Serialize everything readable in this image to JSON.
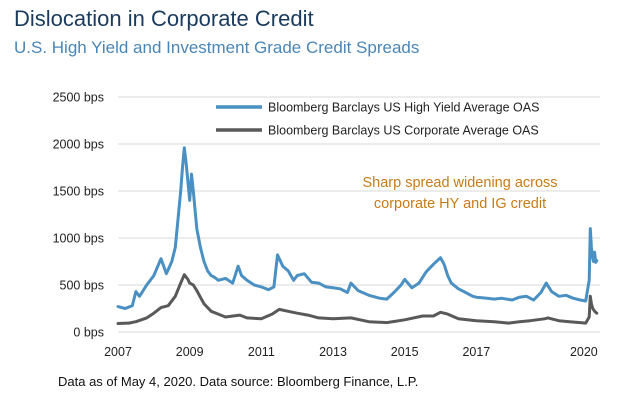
{
  "header": {
    "title": "Dislocation in Corporate Credit",
    "subtitle": "U.S. High Yield and Investment Grade Credit Spreads"
  },
  "footnote": "Data as of May 4, 2020. Data source: Bloomberg Finance, L.P.",
  "colors": {
    "high_yield": "#4a90c2",
    "corporate": "#595959",
    "annotation": "#c77b16",
    "grid": "#d9d9d9"
  },
  "chart_data": {
    "type": "line",
    "title": "Dislocation in Corporate Credit",
    "subtitle": "U.S. High Yield and Investment Grade Credit Spreads",
    "xlabel": "",
    "ylabel": "",
    "xlim": [
      2007.0,
      2020.45
    ],
    "ylim": [
      0,
      2500
    ],
    "y_ticks": [
      0,
      500,
      1000,
      1500,
      2000,
      2500
    ],
    "y_tick_labels": [
      "0 bps",
      "500 bps",
      "1000 bps",
      "1500 bps",
      "2000 bps",
      "2500 bps"
    ],
    "x_ticks": [
      2007,
      2009,
      2011,
      2013,
      2015,
      2017,
      2020
    ],
    "x_tick_labels": [
      "2007",
      "2009",
      "2011",
      "2013",
      "2015",
      "2017",
      "2020"
    ],
    "grid": "horizontal",
    "legend_position": "top-right",
    "annotation": [
      "Sharp spread widening across",
      "corporate HY and IG credit"
    ],
    "series": [
      {
        "name": "Bloomberg Barclays US High Yield Average OAS",
        "x": [
          2007.0,
          2007.2,
          2007.4,
          2007.5,
          2007.6,
          2007.8,
          2008.0,
          2008.2,
          2008.35,
          2008.5,
          2008.6,
          2008.7,
          2008.75,
          2008.8,
          2008.85,
          2008.9,
          2008.95,
          2009.0,
          2009.05,
          2009.1,
          2009.2,
          2009.3,
          2009.4,
          2009.5,
          2009.6,
          2009.7,
          2009.8,
          2010.0,
          2010.2,
          2010.35,
          2010.45,
          2010.6,
          2010.8,
          2011.0,
          2011.2,
          2011.35,
          2011.45,
          2011.6,
          2011.75,
          2011.9,
          2012.0,
          2012.2,
          2012.4,
          2012.6,
          2012.8,
          2013.0,
          2013.2,
          2013.4,
          2013.5,
          2013.7,
          2014.0,
          2014.3,
          2014.5,
          2014.7,
          2014.9,
          2015.0,
          2015.2,
          2015.4,
          2015.6,
          2015.8,
          2016.0,
          2016.1,
          2016.2,
          2016.3,
          2016.5,
          2016.7,
          2016.9,
          2017.0,
          2017.3,
          2017.5,
          2017.7,
          2018.0,
          2018.2,
          2018.4,
          2018.6,
          2018.8,
          2018.95,
          2019.1,
          2019.3,
          2019.5,
          2019.7,
          2019.9,
          2020.05,
          2020.15,
          2020.18,
          2020.21,
          2020.24,
          2020.27,
          2020.3,
          2020.33,
          2020.36
        ],
        "values": [
          270,
          250,
          280,
          430,
          380,
          500,
          600,
          780,
          620,
          750,
          900,
          1300,
          1500,
          1750,
          1960,
          1800,
          1600,
          1400,
          1680,
          1500,
          1100,
          900,
          750,
          650,
          600,
          580,
          550,
          570,
          520,
          700,
          600,
          550,
          500,
          480,
          450,
          480,
          820,
          700,
          650,
          550,
          600,
          620,
          530,
          520,
          480,
          470,
          460,
          420,
          520,
          440,
          390,
          360,
          350,
          420,
          500,
          560,
          470,
          520,
          640,
          720,
          790,
          720,
          600,
          520,
          460,
          420,
          380,
          370,
          360,
          350,
          360,
          340,
          370,
          380,
          340,
          420,
          520,
          430,
          380,
          390,
          360,
          340,
          330,
          550,
          1100,
          900,
          800,
          750,
          850,
          740,
          760
        ]
      },
      {
        "name": "Bloomberg Barclays US Corporate Average OAS",
        "x": [
          2007.0,
          2007.3,
          2007.5,
          2007.8,
          2008.0,
          2008.2,
          2008.4,
          2008.6,
          2008.75,
          2008.85,
          2008.95,
          2009.0,
          2009.1,
          2009.2,
          2009.4,
          2009.6,
          2009.8,
          2010.0,
          2010.4,
          2010.6,
          2011.0,
          2011.3,
          2011.5,
          2011.75,
          2012.0,
          2012.3,
          2012.6,
          2013.0,
          2013.5,
          2014.0,
          2014.5,
          2015.0,
          2015.5,
          2015.8,
          2016.0,
          2016.2,
          2016.5,
          2017.0,
          2017.5,
          2017.9,
          2018.2,
          2018.5,
          2018.9,
          2019.0,
          2019.3,
          2019.6,
          2019.9,
          2020.05,
          2020.15,
          2020.18,
          2020.21,
          2020.25,
          2020.3,
          2020.36
        ],
        "values": [
          90,
          95,
          110,
          150,
          200,
          260,
          280,
          380,
          520,
          610,
          560,
          520,
          500,
          440,
          300,
          220,
          190,
          160,
          180,
          150,
          140,
          190,
          240,
          220,
          200,
          180,
          150,
          140,
          150,
          110,
          100,
          130,
          170,
          170,
          210,
          190,
          140,
          120,
          110,
          95,
          110,
          120,
          140,
          150,
          120,
          110,
          100,
          95,
          160,
          380,
          300,
          250,
          220,
          200
        ]
      }
    ]
  }
}
